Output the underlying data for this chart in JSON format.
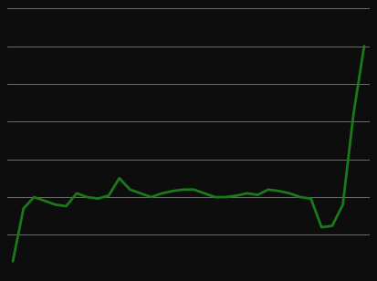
{
  "years": [
    1990,
    1991,
    1992,
    1993,
    1994,
    1995,
    1996,
    1997,
    1998,
    1999,
    2000,
    2001,
    2002,
    2003,
    2004,
    2005,
    2006,
    2007,
    2008,
    2009,
    2010,
    2011,
    2012,
    2013,
    2014,
    2015,
    2016,
    2017,
    2018,
    2019,
    2020,
    2021,
    2022,
    2023
  ],
  "values": [
    0.15,
    0.85,
    1.0,
    0.95,
    0.9,
    0.88,
    1.05,
    1.0,
    0.98,
    1.02,
    1.25,
    1.1,
    1.05,
    1.0,
    1.05,
    1.08,
    1.1,
    1.1,
    1.05,
    1.0,
    1.0,
    1.02,
    1.05,
    1.03,
    1.1,
    1.08,
    1.05,
    1.0,
    0.98,
    0.6,
    0.62,
    0.9,
    2.1,
    3.0
  ],
  "line_color": "#1a7a1a",
  "line_width": 2.0,
  "background_color": "#0d0d0d",
  "grid_color": "#ffffff",
  "ylim": [
    0,
    3.5
  ],
  "xlim": [
    1989.5,
    2023.5
  ],
  "yticks": [
    0.0,
    0.5,
    1.0,
    1.5,
    2.0,
    2.5,
    3.0,
    3.5
  ],
  "grid_linewidth": 0.5,
  "grid_alpha": 0.55
}
